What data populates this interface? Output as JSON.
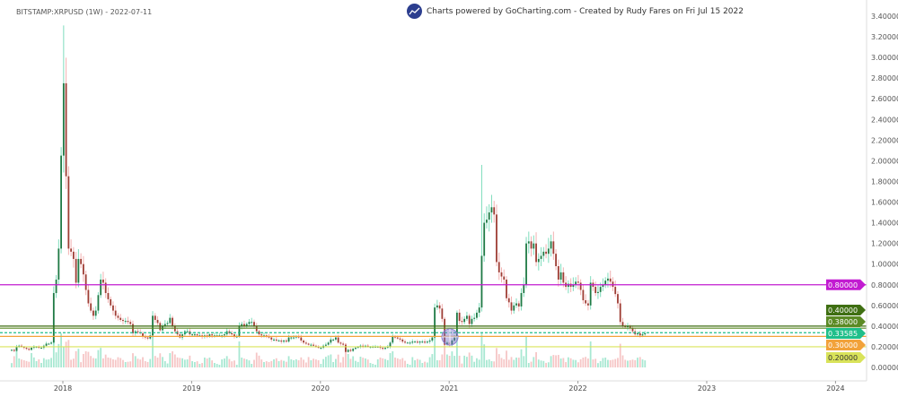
{
  "header": {
    "title": "BITSTAMP:XRPUSD (1W) - 2022-07-11",
    "credit": "Charts powered by GoCharting.com - Created by Rudy Fares on Fri Jul 15 2022"
  },
  "chart_data": {
    "type": "candlestick",
    "symbol": "BITSTAMP:XRPUSD",
    "interval": "1W",
    "first_week": "2017-08-14",
    "ylim": [
      0,
      3.4
    ],
    "y_ticks": [
      "0.00000",
      "0.20000",
      "0.40000",
      "0.60000",
      "0.80000",
      "1.00000",
      "1.20000",
      "1.40000",
      "1.60000",
      "1.80000",
      "2.00000",
      "2.20000",
      "2.40000",
      "2.60000",
      "2.80000",
      "3.00000",
      "3.20000",
      "3.40000"
    ],
    "x_ticks": [
      "2018",
      "2019",
      "2020",
      "2021",
      "2022",
      "2023",
      "2024"
    ],
    "grid": false,
    "volume_pane": true,
    "closes": [
      0.17,
      0.16,
      0.2,
      0.21,
      0.2,
      0.19,
      0.18,
      0.17,
      0.19,
      0.2,
      0.2,
      0.19,
      0.19,
      0.21,
      0.23,
      0.23,
      0.24,
      0.72,
      0.85,
      1.15,
      2.05,
      2.75,
      1.85,
      1.15,
      1.12,
      1.05,
      0.82,
      1.05,
      1.0,
      0.9,
      0.75,
      0.62,
      0.55,
      0.5,
      0.55,
      0.7,
      0.85,
      0.82,
      0.72,
      0.66,
      0.6,
      0.55,
      0.5,
      0.48,
      0.46,
      0.45,
      0.45,
      0.44,
      0.42,
      0.33,
      0.35,
      0.34,
      0.33,
      0.3,
      0.29,
      0.28,
      0.31,
      0.5,
      0.46,
      0.43,
      0.36,
      0.4,
      0.42,
      0.43,
      0.48,
      0.4,
      0.35,
      0.32,
      0.29,
      0.32,
      0.35,
      0.35,
      0.32,
      0.32,
      0.32,
      0.31,
      0.31,
      0.3,
      0.31,
      0.3,
      0.32,
      0.31,
      0.31,
      0.31,
      0.31,
      0.31,
      0.32,
      0.35,
      0.33,
      0.32,
      0.3,
      0.3,
      0.4,
      0.42,
      0.4,
      0.42,
      0.44,
      0.44,
      0.4,
      0.35,
      0.32,
      0.31,
      0.31,
      0.3,
      0.29,
      0.27,
      0.27,
      0.26,
      0.26,
      0.25,
      0.26,
      0.25,
      0.29,
      0.29,
      0.29,
      0.3,
      0.29,
      0.26,
      0.24,
      0.23,
      0.22,
      0.22,
      0.21,
      0.2,
      0.19,
      0.19,
      0.21,
      0.22,
      0.24,
      0.27,
      0.27,
      0.29,
      0.24,
      0.23,
      0.22,
      0.15,
      0.17,
      0.16,
      0.18,
      0.19,
      0.2,
      0.21,
      0.2,
      0.21,
      0.2,
      0.2,
      0.2,
      0.2,
      0.2,
      0.19,
      0.18,
      0.19,
      0.2,
      0.24,
      0.3,
      0.29,
      0.28,
      0.27,
      0.25,
      0.24,
      0.24,
      0.24,
      0.25,
      0.25,
      0.24,
      0.25,
      0.25,
      0.24,
      0.25,
      0.26,
      0.29,
      0.58,
      0.6,
      0.57,
      0.47,
      0.22,
      0.24,
      0.22,
      0.26,
      0.29,
      0.53,
      0.45,
      0.44,
      0.47,
      0.5,
      0.42,
      0.47,
      0.48,
      0.53,
      0.58,
      1.08,
      1.4,
      1.43,
      1.5,
      1.55,
      1.48,
      1.02,
      0.92,
      0.88,
      0.85,
      0.67,
      0.63,
      0.55,
      0.6,
      0.62,
      0.59,
      0.72,
      0.8,
      1.2,
      1.22,
      1.15,
      1.2,
      1.02,
      1.05,
      1.08,
      1.12,
      1.1,
      1.15,
      1.22,
      1.1,
      0.98,
      0.85,
      0.92,
      0.82,
      0.78,
      0.81,
      0.78,
      0.8,
      0.83,
      0.82,
      0.75,
      0.65,
      0.62,
      0.6,
      0.82,
      0.78,
      0.72,
      0.73,
      0.78,
      0.8,
      0.84,
      0.86,
      0.83,
      0.78,
      0.71,
      0.62,
      0.44,
      0.4,
      0.39,
      0.4,
      0.38,
      0.35,
      0.32,
      0.33,
      0.31,
      0.32,
      0.33
    ],
    "notable_highs": [
      {
        "week_index": 21,
        "high": 3.31
      },
      {
        "week_index": 190,
        "high": 1.96
      }
    ],
    "horizontal_levels": [
      {
        "label": "0.80000",
        "value": 0.8,
        "color": "#c21bd1"
      },
      {
        "label": "0.40000",
        "value": 0.4,
        "color": "#3f6f12"
      },
      {
        "label": "0.38000",
        "value": 0.38,
        "color": "#5b8a24"
      },
      {
        "label": "0.33585",
        "value": 0.33585,
        "color": "#1fbf8a",
        "dashed": true,
        "current_price": true
      },
      {
        "label": "0.30000",
        "value": 0.3,
        "color": "#f2a23a"
      },
      {
        "label": "0.20000",
        "value": 0.2,
        "color": "#d9e35a"
      }
    ],
    "colors": {
      "up_body": "#1f7a45",
      "up_wick": "#7fdcbc",
      "down_body": "#9e3d34",
      "down_wick": "#f2b1b1",
      "vol_up": "#a8e8d2",
      "vol_down": "#f6c6c6"
    }
  }
}
